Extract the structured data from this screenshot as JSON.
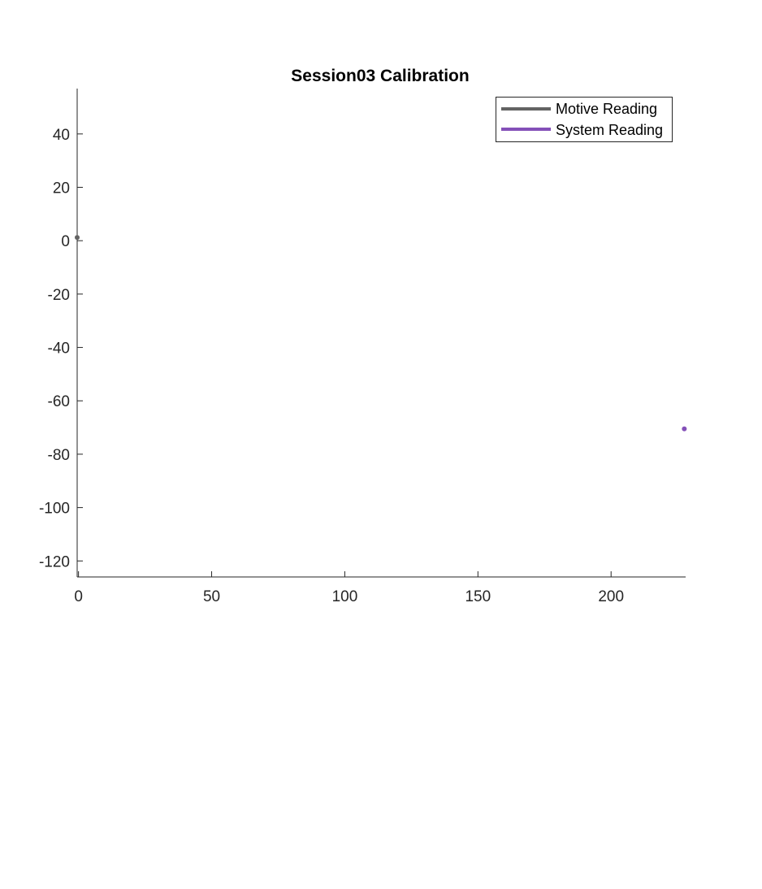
{
  "chart_data": {
    "type": "scatter",
    "title": "Session03 Calibration",
    "xlabel": "",
    "ylabel": "",
    "xlim": [
      -0.5,
      228
    ],
    "ylim": [
      -126,
      57
    ],
    "x_ticks": [
      0,
      50,
      100,
      150,
      200
    ],
    "y_ticks": [
      40,
      20,
      0,
      -20,
      -40,
      -60,
      -80,
      -100,
      -120
    ],
    "grid": false,
    "legend_position": "top-right",
    "series": [
      {
        "name": "Motive Reading",
        "color": "#636363",
        "points": [
          {
            "x": -0.5,
            "y": 1.2
          }
        ]
      },
      {
        "name": "System Reading",
        "color": "#8450b8",
        "points": [
          {
            "x": 227.5,
            "y": -70.5
          }
        ]
      }
    ]
  }
}
